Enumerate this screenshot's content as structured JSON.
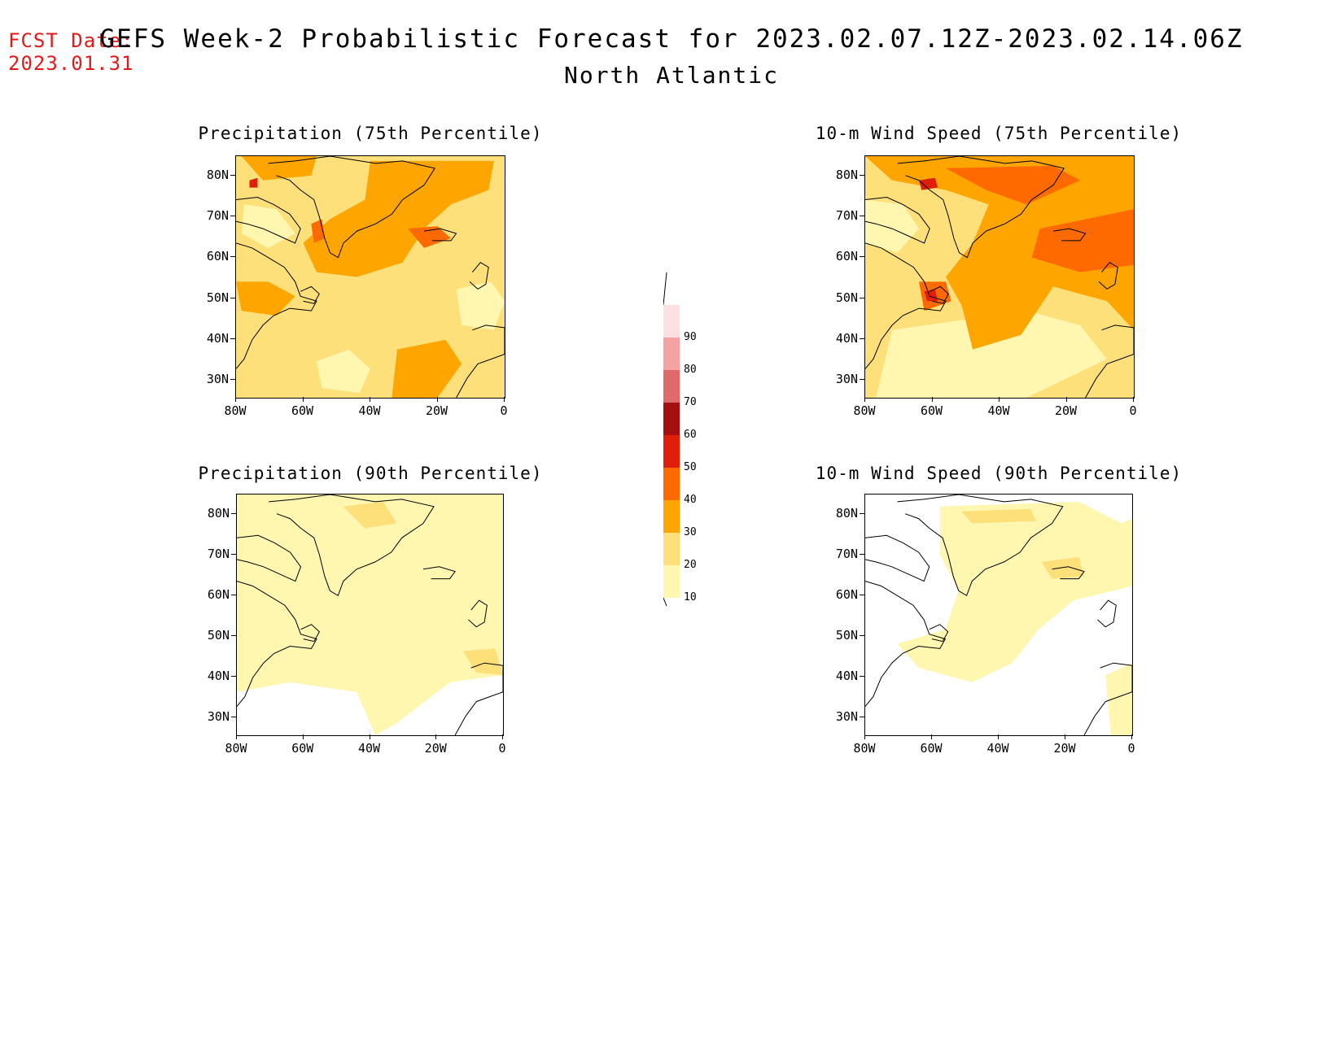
{
  "header": {
    "fcst_date_label": "FCST Date:",
    "fcst_date_value": "2023.01.31",
    "title": "GEFS Week-2 Probabilistic Forecast for 2023.02.07.12Z-2023.02.14.06Z",
    "subtitle": "North Atlantic"
  },
  "panels": [
    {
      "id": "precip75",
      "title": "Precipitation (75th Percentile)"
    },
    {
      "id": "wind75",
      "title": "10-m Wind Speed (75th Percentile)"
    },
    {
      "id": "precip90",
      "title": "Precipitation (90th Percentile)"
    },
    {
      "id": "wind90",
      "title": "10-m Wind Speed (90th Percentile)"
    }
  ],
  "axes": {
    "lat_labels": [
      "80N",
      "70N",
      "60N",
      "50N",
      "40N",
      "30N"
    ],
    "lon_labels": [
      "80W",
      "60W",
      "40W",
      "20W",
      "0"
    ]
  },
  "colorbar": {
    "labels": [
      "90",
      "80",
      "70",
      "60",
      "50",
      "40",
      "30",
      "20",
      "10"
    ],
    "colors": [
      "#fde0e0",
      "#f4a3a3",
      "#e06a6a",
      "#a50f0f",
      "#e01e0a",
      "#ff6a00",
      "#ffa500",
      "#fde07a",
      "#fff6b0"
    ]
  },
  "colors": {
    "c10": "#fff6b0",
    "c20": "#fde07a",
    "c30": "#ffa500",
    "c40": "#ff6a00",
    "c50": "#e01e0a",
    "fcst": "#e41a1a"
  }
}
